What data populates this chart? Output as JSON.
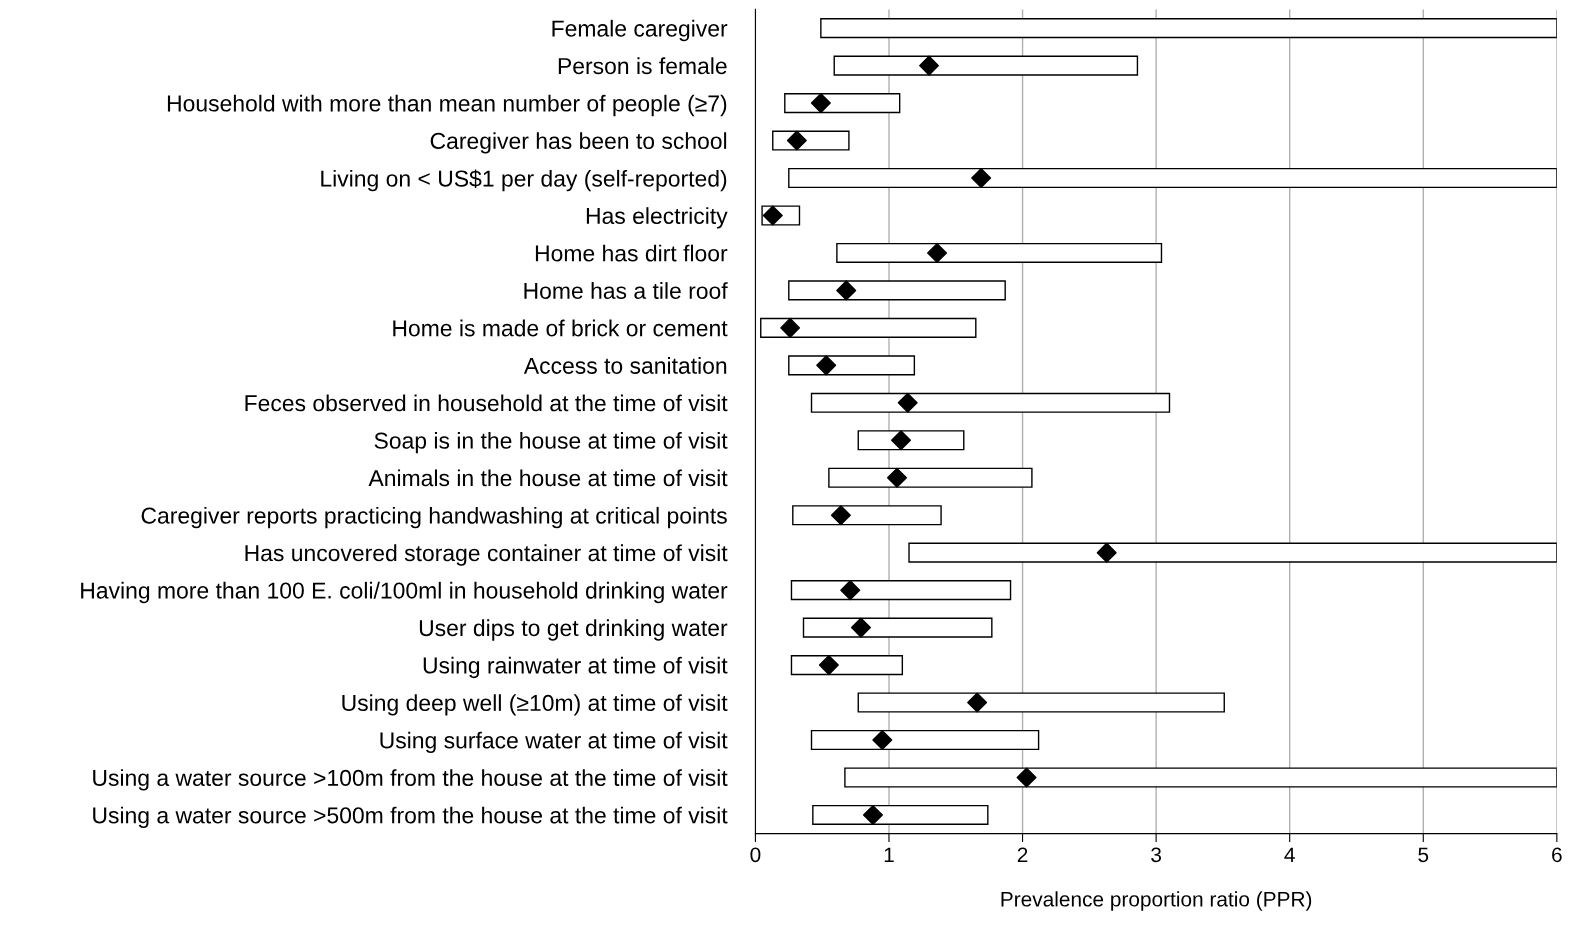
{
  "chart_data": {
    "type": "bar",
    "orientation": "horizontal",
    "xlabel": "Prevalence proportion ratio (PPR)",
    "categories": [
      "Female caregiver",
      "Person is female",
      "Household with more than mean number of people (≥7)",
      "Caregiver has been to school",
      "Living on < US$1 per day (self-reported)",
      "Has electricity",
      "Home has dirt floor",
      "Home has a tile roof",
      "Home is made of brick or cement",
      "Access to sanitation",
      "Feces observed in household at the time of visit",
      "Soap is in the house at time of visit",
      "Animals in the house at time of visit",
      "Caregiver reports practicing handwashing at critical points",
      "Has uncovered storage container at time of visit",
      "Having more than 100 E. coli/100ml in household drinking water",
      "User dips to get drinking water",
      "Using rainwater at time of visit",
      "Using deep well (≥10m) at time of visit",
      "Using surface water at time of visit",
      "Using a water source >100m from the house at the time of visit",
      "Using a water source >500m from the house at the time of visit"
    ],
    "series": [
      {
        "color": "#ffffff",
        "base": [
          0.49,
          0.59,
          0.22,
          0.13,
          0.25,
          0.05,
          0.61,
          0.25,
          0.04,
          0.25,
          0.42,
          0.77,
          0.55,
          0.28,
          1.15,
          0.27,
          0.36,
          0.27,
          0.77,
          0.42,
          0.67,
          0.43
        ],
        "values": [
          5.51,
          2.27,
          0.86,
          0.57,
          5.75,
          0.28,
          2.43,
          1.62,
          1.61,
          0.94,
          2.68,
          0.79,
          1.52,
          1.11,
          4.85,
          1.64,
          1.41,
          0.83,
          2.74,
          1.7,
          5.33,
          1.31
        ]
      },
      {
        "type": "scatter",
        "color": "#000000",
        "marker": "diamond",
        "values": [
          null,
          1.3,
          0.49,
          0.31,
          1.69,
          0.13,
          1.36,
          0.68,
          0.26,
          0.53,
          1.14,
          1.09,
          1.06,
          0.64,
          2.63,
          0.71,
          0.79,
          0.55,
          1.66,
          0.95,
          2.03,
          0.88
        ]
      }
    ],
    "xlim": [
      0,
      6
    ],
    "xticks": [
      0,
      1,
      2,
      3,
      4,
      5,
      6
    ],
    "grid": "x"
  }
}
